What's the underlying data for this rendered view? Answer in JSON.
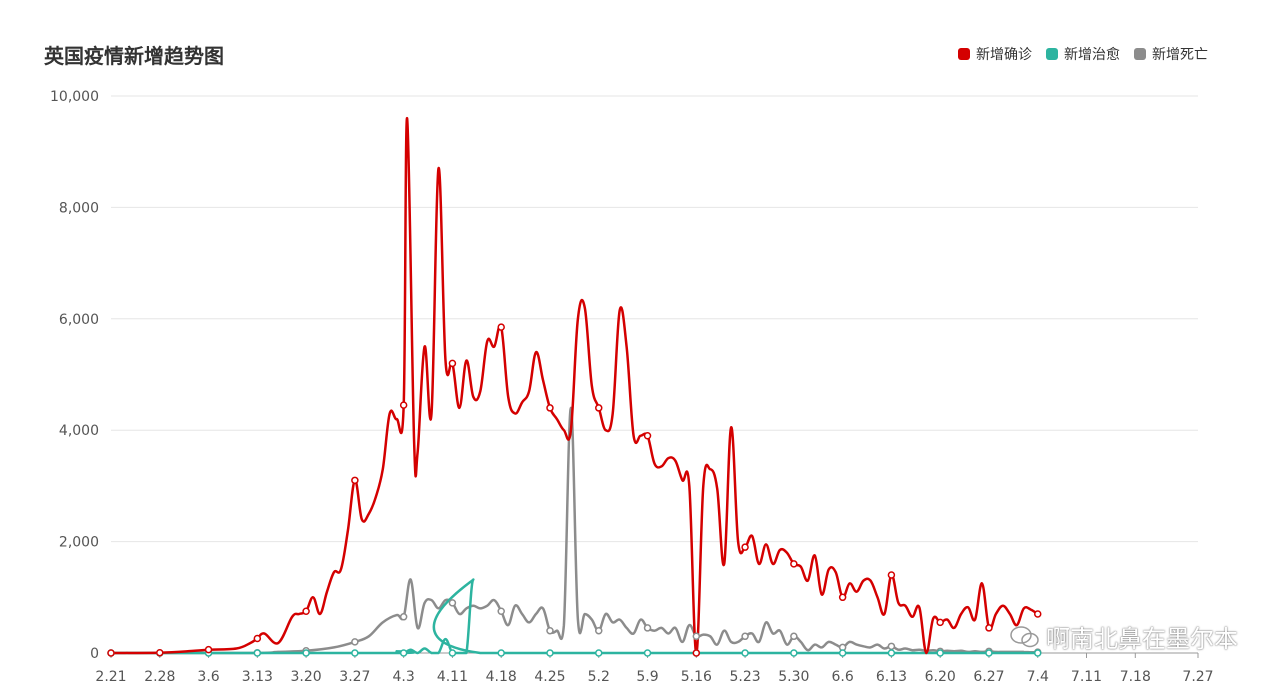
{
  "title": "英国疫情新增趋势图",
  "watermark": "啊南北鼻在墨尔本",
  "colors": {
    "confirmed": "#d40000",
    "recovered": "#2db4a0",
    "deaths": "#8c8c8c",
    "grid": "#e6e6e6",
    "axis": "#999999"
  },
  "legend": [
    {
      "label": "新增确诊",
      "color": "#d40000"
    },
    {
      "label": "新增治愈",
      "color": "#2db4a0"
    },
    {
      "label": "新增死亡",
      "color": "#8c8c8c"
    }
  ],
  "chart_data": {
    "type": "line",
    "title": "英国疫情新增趋势图",
    "ylim": [
      0,
      10000
    ],
    "yticks": [
      "0",
      "2,000",
      "4,000",
      "6,000",
      "8,000",
      "10,000"
    ],
    "x_tick_labels": [
      "2.21",
      "2.28",
      "3.6",
      "3.13",
      "3.20",
      "3.27",
      "4.3",
      "4.11",
      "4.18",
      "4.25",
      "5.2",
      "5.9",
      "5.16",
      "5.23",
      "5.30",
      "6.6",
      "6.13",
      "6.20",
      "6.27",
      "7.4",
      "7.11",
      "7.18",
      "7.27"
    ],
    "x_tick_days": [
      0,
      7,
      14,
      21,
      28,
      35,
      42,
      49,
      56,
      63,
      70,
      77,
      84,
      91,
      98,
      105,
      112,
      119,
      126,
      133,
      140,
      147,
      156
    ],
    "series": [
      {
        "name": "新增确诊",
        "color": "#d40000",
        "points": [
          [
            0,
            0
          ],
          [
            7,
            5
          ],
          [
            12,
            40
          ],
          [
            14,
            60
          ],
          [
            18,
            80
          ],
          [
            20,
            180
          ],
          [
            21,
            260
          ],
          [
            22,
            350
          ],
          [
            24,
            180
          ],
          [
            26,
            650
          ],
          [
            27,
            700
          ],
          [
            28,
            750
          ],
          [
            29,
            1000
          ],
          [
            30,
            700
          ],
          [
            31,
            1100
          ],
          [
            32,
            1450
          ],
          [
            33,
            1500
          ],
          [
            34,
            2200
          ],
          [
            35,
            3100
          ],
          [
            36,
            2400
          ],
          [
            37,
            2500
          ],
          [
            38,
            2800
          ],
          [
            39,
            3300
          ],
          [
            40,
            4300
          ],
          [
            41,
            4200
          ],
          [
            42,
            4450
          ],
          [
            42.5,
            9600
          ],
          [
            43.5,
            3800
          ],
          [
            44,
            3600
          ],
          [
            45,
            5500
          ],
          [
            46,
            4300
          ],
          [
            47,
            8700
          ],
          [
            48,
            5250
          ],
          [
            49,
            5200
          ],
          [
            50,
            4400
          ],
          [
            51,
            5250
          ],
          [
            52,
            4600
          ],
          [
            53,
            4700
          ],
          [
            54,
            5600
          ],
          [
            55,
            5500
          ],
          [
            56,
            5850
          ],
          [
            57,
            4600
          ],
          [
            58,
            4300
          ],
          [
            59,
            4500
          ],
          [
            60,
            4700
          ],
          [
            61,
            5400
          ],
          [
            62,
            4900
          ],
          [
            63,
            4400
          ],
          [
            64,
            4200
          ],
          [
            65,
            4000
          ],
          [
            66,
            4000
          ],
          [
            67,
            6000
          ],
          [
            68,
            6200
          ],
          [
            69,
            4800
          ],
          [
            70,
            4400
          ],
          [
            71,
            4000
          ],
          [
            72,
            4300
          ],
          [
            73,
            6150
          ],
          [
            74,
            5500
          ],
          [
            75,
            3900
          ],
          [
            76,
            3900
          ],
          [
            77,
            3900
          ],
          [
            78,
            3400
          ],
          [
            79,
            3350
          ],
          [
            80,
            3500
          ],
          [
            81,
            3450
          ],
          [
            82,
            3100
          ],
          [
            83,
            3000
          ],
          [
            84,
            0
          ],
          [
            85,
            3000
          ],
          [
            86,
            3300
          ],
          [
            87,
            2950
          ],
          [
            88,
            1600
          ],
          [
            89,
            4050
          ],
          [
            90,
            2000
          ],
          [
            91,
            1900
          ],
          [
            92,
            2100
          ],
          [
            93,
            1600
          ],
          [
            94,
            1950
          ],
          [
            95,
            1600
          ],
          [
            96,
            1850
          ],
          [
            97,
            1800
          ],
          [
            98,
            1600
          ],
          [
            99,
            1550
          ],
          [
            100,
            1300
          ],
          [
            101,
            1750
          ],
          [
            102,
            1050
          ],
          [
            103,
            1500
          ],
          [
            104,
            1450
          ],
          [
            105,
            1000
          ],
          [
            106,
            1250
          ],
          [
            107,
            1100
          ],
          [
            108,
            1300
          ],
          [
            109,
            1300
          ],
          [
            110,
            1000
          ],
          [
            111,
            700
          ],
          [
            112,
            1400
          ],
          [
            113,
            900
          ],
          [
            114,
            850
          ],
          [
            115,
            650
          ],
          [
            116,
            820
          ],
          [
            117,
            0
          ],
          [
            118,
            620
          ],
          [
            119,
            550
          ],
          [
            120,
            600
          ],
          [
            121,
            450
          ],
          [
            122,
            700
          ],
          [
            123,
            820
          ],
          [
            124,
            600
          ],
          [
            125,
            1250
          ],
          [
            126,
            450
          ],
          [
            127,
            700
          ],
          [
            128,
            850
          ],
          [
            129,
            700
          ],
          [
            130,
            500
          ],
          [
            131,
            800
          ],
          [
            132,
            780
          ],
          [
            133,
            700
          ]
        ]
      },
      {
        "name": "新增治愈",
        "color": "#2db4a0",
        "points": [
          [
            0,
            0
          ],
          [
            40,
            0
          ],
          [
            41,
            30
          ],
          [
            42,
            0
          ],
          [
            43,
            60
          ],
          [
            44,
            0
          ],
          [
            45,
            80
          ],
          [
            46,
            0
          ],
          [
            47,
            0
          ],
          [
            48,
            250
          ],
          [
            49,
            0
          ],
          [
            50,
            0
          ],
          [
            51,
            0
          ],
          [
            52,
            1320
          ],
          [
            53,
            0
          ],
          [
            133,
            0
          ]
        ]
      },
      {
        "name": "新增死亡",
        "color": "#8c8c8c",
        "points": [
          [
            0,
            0
          ],
          [
            20,
            0
          ],
          [
            24,
            20
          ],
          [
            28,
            40
          ],
          [
            32,
            100
          ],
          [
            35,
            200
          ],
          [
            37,
            300
          ],
          [
            39,
            550
          ],
          [
            41,
            680
          ],
          [
            42,
            650
          ],
          [
            43,
            1320
          ],
          [
            44,
            450
          ],
          [
            45,
            900
          ],
          [
            46,
            950
          ],
          [
            47,
            800
          ],
          [
            48,
            950
          ],
          [
            49,
            900
          ],
          [
            50,
            700
          ],
          [
            51,
            800
          ],
          [
            52,
            850
          ],
          [
            53,
            800
          ],
          [
            54,
            850
          ],
          [
            55,
            950
          ],
          [
            56,
            750
          ],
          [
            57,
            500
          ],
          [
            58,
            850
          ],
          [
            59,
            700
          ],
          [
            60,
            550
          ],
          [
            61,
            700
          ],
          [
            62,
            800
          ],
          [
            63,
            400
          ],
          [
            64,
            400
          ],
          [
            65,
            500
          ],
          [
            66,
            4400
          ],
          [
            67,
            600
          ],
          [
            68,
            700
          ],
          [
            69,
            600
          ],
          [
            70,
            400
          ],
          [
            71,
            700
          ],
          [
            72,
            550
          ],
          [
            73,
            600
          ],
          [
            74,
            450
          ],
          [
            75,
            350
          ],
          [
            76,
            600
          ],
          [
            77,
            450
          ],
          [
            78,
            400
          ],
          [
            79,
            450
          ],
          [
            80,
            350
          ],
          [
            81,
            450
          ],
          [
            82,
            200
          ],
          [
            83,
            500
          ],
          [
            84,
            300
          ],
          [
            85,
            330
          ],
          [
            86,
            300
          ],
          [
            87,
            150
          ],
          [
            88,
            400
          ],
          [
            89,
            200
          ],
          [
            90,
            200
          ],
          [
            91,
            300
          ],
          [
            92,
            350
          ],
          [
            93,
            200
          ],
          [
            94,
            550
          ],
          [
            95,
            350
          ],
          [
            96,
            400
          ],
          [
            97,
            150
          ],
          [
            98,
            300
          ],
          [
            99,
            200
          ],
          [
            100,
            50
          ],
          [
            101,
            150
          ],
          [
            102,
            100
          ],
          [
            103,
            200
          ],
          [
            104,
            150
          ],
          [
            105,
            100
          ],
          [
            106,
            200
          ],
          [
            107,
            150
          ],
          [
            108,
            120
          ],
          [
            109,
            100
          ],
          [
            110,
            150
          ],
          [
            111,
            80
          ],
          [
            112,
            120
          ],
          [
            113,
            60
          ],
          [
            114,
            80
          ],
          [
            115,
            50
          ],
          [
            116,
            60
          ],
          [
            117,
            40
          ],
          [
            118,
            50
          ],
          [
            119,
            30
          ],
          [
            120,
            40
          ],
          [
            121,
            30
          ],
          [
            122,
            40
          ],
          [
            123,
            20
          ],
          [
            124,
            30
          ],
          [
            125,
            20
          ],
          [
            126,
            30
          ],
          [
            127,
            20
          ],
          [
            128,
            20
          ],
          [
            129,
            20
          ],
          [
            130,
            20
          ],
          [
            131,
            20
          ],
          [
            132,
            15
          ],
          [
            133,
            15
          ]
        ]
      }
    ]
  }
}
